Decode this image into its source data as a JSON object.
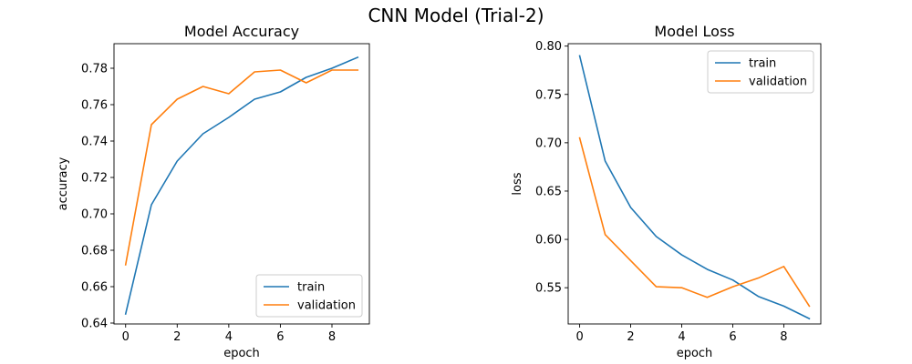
{
  "figure_title": "CNN Model (Trial-2)",
  "colors": {
    "train": "#1f77b4",
    "validation": "#ff7f0e"
  },
  "chart_data": [
    {
      "type": "line",
      "title": "Model Accuracy",
      "xlabel": "epoch",
      "ylabel": "accuracy",
      "x": [
        0,
        1,
        2,
        3,
        4,
        5,
        6,
        7,
        8,
        9
      ],
      "xlim": [
        -0.45,
        9.45
      ],
      "ylim": [
        0.6395,
        0.7935
      ],
      "xticks": [
        0,
        2,
        4,
        6,
        8
      ],
      "yticks": [
        0.64,
        0.66,
        0.68,
        0.7,
        0.72,
        0.74,
        0.76,
        0.78
      ],
      "ytick_labels": [
        "0.64",
        "0.66",
        "0.68",
        "0.70",
        "0.72",
        "0.74",
        "0.76",
        "0.78"
      ],
      "legend_position": "lower right",
      "grid": false,
      "series": [
        {
          "name": "train",
          "values": [
            0.645,
            0.705,
            0.729,
            0.744,
            0.753,
            0.763,
            0.767,
            0.775,
            0.78,
            0.786
          ]
        },
        {
          "name": "validation",
          "values": [
            0.672,
            0.749,
            0.763,
            0.77,
            0.766,
            0.778,
            0.779,
            0.772,
            0.779,
            0.779
          ]
        }
      ]
    },
    {
      "type": "line",
      "title": "Model Loss",
      "xlabel": "epoch",
      "ylabel": "loss",
      "x": [
        0,
        1,
        2,
        3,
        4,
        5,
        6,
        7,
        8,
        9
      ],
      "xlim": [
        -0.45,
        9.45
      ],
      "ylim": [
        0.5125,
        0.8025
      ],
      "xticks": [
        0,
        2,
        4,
        6,
        8
      ],
      "yticks": [
        0.55,
        0.6,
        0.65,
        0.7,
        0.75,
        0.8
      ],
      "ytick_labels": [
        "0.55",
        "0.60",
        "0.65",
        "0.70",
        "0.75",
        "0.80"
      ],
      "legend_position": "upper right",
      "grid": false,
      "series": [
        {
          "name": "train",
          "values": [
            0.79,
            0.681,
            0.633,
            0.603,
            0.584,
            0.569,
            0.558,
            0.541,
            0.531,
            0.518
          ]
        },
        {
          "name": "validation",
          "values": [
            0.705,
            0.605,
            0.578,
            0.551,
            0.55,
            0.54,
            0.551,
            0.56,
            0.572,
            0.531
          ]
        }
      ]
    }
  ]
}
